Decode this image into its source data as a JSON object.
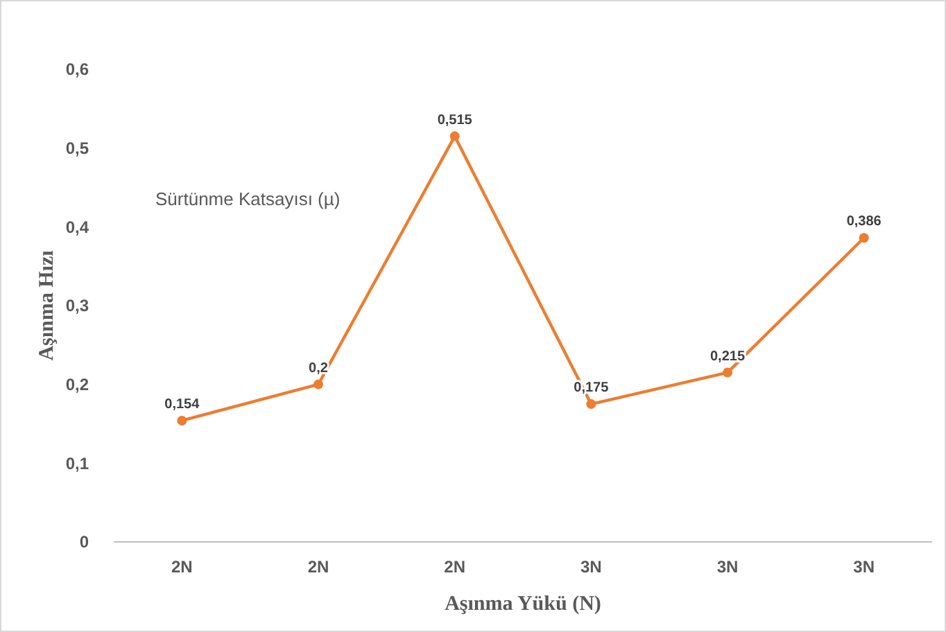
{
  "chart_data": {
    "type": "line",
    "xlabel": "Aşınma Yükü (N)",
    "ylabel": "Aşınma Hızı",
    "categories": [
      "2N",
      "2N",
      "2N",
      "3N",
      "3N",
      "3N"
    ],
    "series": [
      {
        "color": "#ed7d31",
        "values": [
          0.154,
          0.2,
          0.515,
          0.175,
          0.215,
          0.386
        ],
        "value_labels": [
          "0,154",
          "0,2",
          "0,515",
          "0,175",
          "0,215",
          "0,386"
        ]
      }
    ],
    "ylim": [
      0,
      0.6
    ],
    "yticks": [
      0,
      {
        "value": 0.1,
        "label": "0,1"
      },
      {
        "value": 0.2,
        "label": "0,2"
      },
      {
        "value": 0.3,
        "label": "0,3"
      },
      {
        "value": 0.4,
        "label": "0,4"
      },
      {
        "value": 0.5,
        "label": "0,5"
      },
      {
        "value": 0.6,
        "label": "0,6"
      }
    ],
    "annotations": [
      "Sürtünme Katsayısı (µ)"
    ],
    "marker": "circle",
    "line_style": "solid"
  }
}
